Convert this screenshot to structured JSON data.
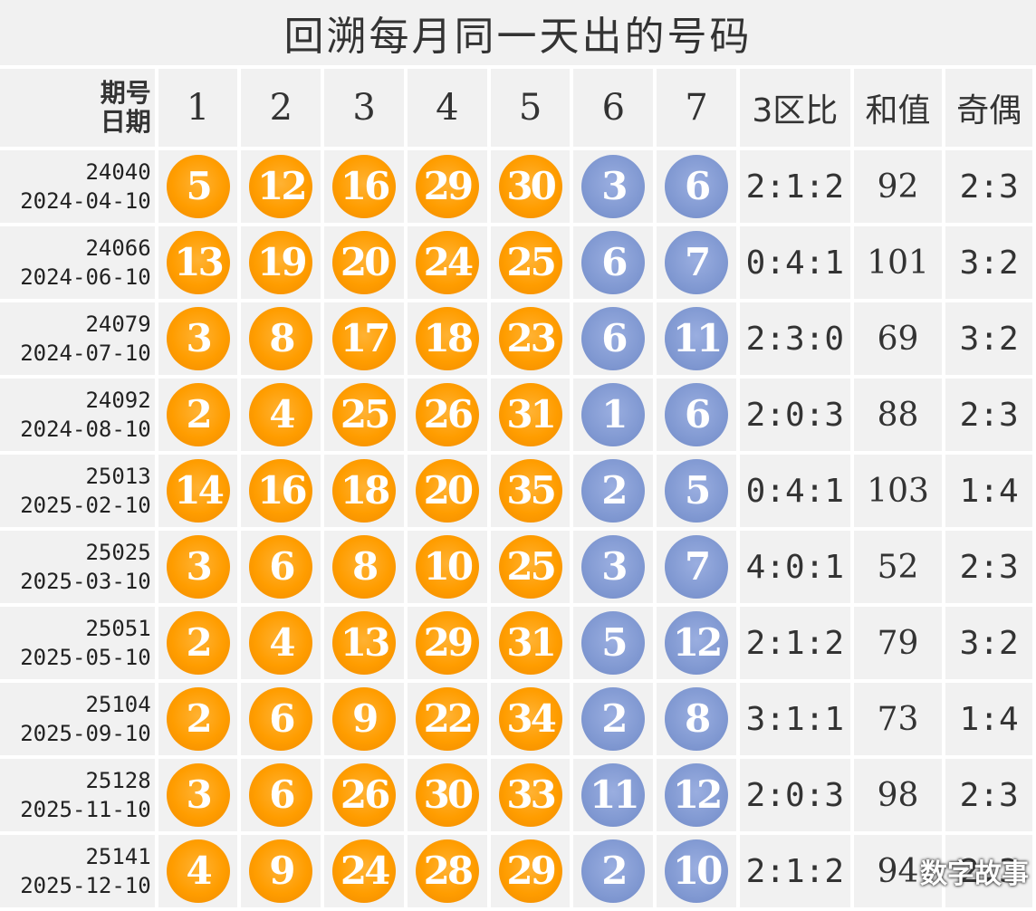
{
  "title": "回溯每月同一天出的号码",
  "header": {
    "issue_label": "期号",
    "date_label": "日期",
    "columns": [
      "1",
      "2",
      "3",
      "4",
      "5",
      "6",
      "7"
    ],
    "zone_ratio": "3区比",
    "sum": "和值",
    "odd_even": "奇偶"
  },
  "rows": [
    {
      "issue": "24040",
      "date": "2024-04-10",
      "front": [
        "5",
        "12",
        "16",
        "29",
        "30"
      ],
      "back": [
        "3",
        "6"
      ],
      "zone_ratio": "2:1:2",
      "sum": "92",
      "odd_even": "2:3"
    },
    {
      "issue": "24066",
      "date": "2024-06-10",
      "front": [
        "13",
        "19",
        "20",
        "24",
        "25"
      ],
      "back": [
        "6",
        "7"
      ],
      "zone_ratio": "0:4:1",
      "sum": "101",
      "odd_even": "3:2"
    },
    {
      "issue": "24079",
      "date": "2024-07-10",
      "front": [
        "3",
        "8",
        "17",
        "18",
        "23"
      ],
      "back": [
        "6",
        "11"
      ],
      "zone_ratio": "2:3:0",
      "sum": "69",
      "odd_even": "3:2"
    },
    {
      "issue": "24092",
      "date": "2024-08-10",
      "front": [
        "2",
        "4",
        "25",
        "26",
        "31"
      ],
      "back": [
        "1",
        "6"
      ],
      "zone_ratio": "2:0:3",
      "sum": "88",
      "odd_even": "2:3"
    },
    {
      "issue": "25013",
      "date": "2025-02-10",
      "front": [
        "14",
        "16",
        "18",
        "20",
        "35"
      ],
      "back": [
        "2",
        "5"
      ],
      "zone_ratio": "0:4:1",
      "sum": "103",
      "odd_even": "1:4"
    },
    {
      "issue": "25025",
      "date": "2025-03-10",
      "front": [
        "3",
        "6",
        "8",
        "10",
        "25"
      ],
      "back": [
        "3",
        "7"
      ],
      "zone_ratio": "4:0:1",
      "sum": "52",
      "odd_even": "2:3"
    },
    {
      "issue": "25051",
      "date": "2025-05-10",
      "front": [
        "2",
        "4",
        "13",
        "29",
        "31"
      ],
      "back": [
        "5",
        "12"
      ],
      "zone_ratio": "2:1:2",
      "sum": "79",
      "odd_even": "3:2"
    },
    {
      "issue": "25104",
      "date": "2025-09-10",
      "front": [
        "2",
        "6",
        "9",
        "22",
        "34"
      ],
      "back": [
        "2",
        "8"
      ],
      "zone_ratio": "3:1:1",
      "sum": "73",
      "odd_even": "1:4"
    },
    {
      "issue": "25128",
      "date": "2025-11-10",
      "front": [
        "3",
        "6",
        "26",
        "30",
        "33"
      ],
      "back": [
        "11",
        "12"
      ],
      "zone_ratio": "2:0:3",
      "sum": "98",
      "odd_even": "2:3"
    },
    {
      "issue": "25141",
      "date": "2025-12-10",
      "front": [
        "4",
        "9",
        "24",
        "28",
        "29"
      ],
      "back": [
        "2",
        "10"
      ],
      "zone_ratio": "2:1:2",
      "sum": "94",
      "odd_even": "2:3"
    }
  ],
  "colors": {
    "front_ball": "#ff9d00",
    "back_ball": "#8199d2",
    "cell_bg": "#f1f1f1"
  },
  "watermark": "数字故事"
}
